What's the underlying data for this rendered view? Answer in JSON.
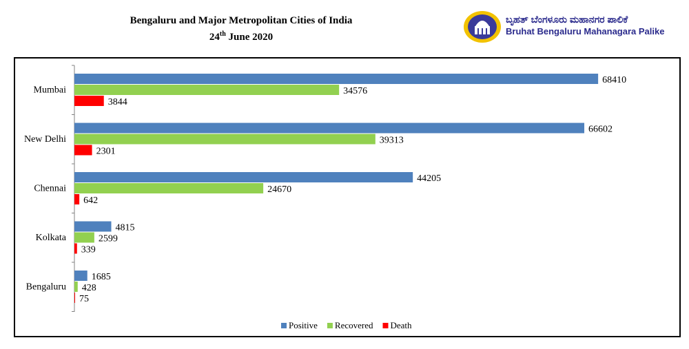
{
  "title": {
    "line1": "Bengaluru and Major Metropolitan Cities of India",
    "date_day": "24",
    "date_suffix": "th",
    "date_rest": " June 2020"
  },
  "logo": {
    "kannada": "ಬೃಹತ್ ಬೆಂಗಳೂರು ಮಹಾನಗರ ಪಾಲಿಕೆ",
    "english": "Bruhat Bengaluru Mahanagara Palike",
    "colors": {
      "ring": "#f2c200",
      "inner": "#3a3a9a",
      "text": "#2a2a8c"
    }
  },
  "chart_data": {
    "type": "bar",
    "orientation": "horizontal",
    "categories": [
      "Mumbai",
      "New Delhi",
      "Chennai",
      "Kolkata",
      "Bengaluru"
    ],
    "series": [
      {
        "name": "Positive",
        "color": "#4f81bd",
        "values": [
          68410,
          66602,
          44205,
          4815,
          1685
        ]
      },
      {
        "name": "Recovered",
        "color": "#92d050",
        "values": [
          34576,
          39313,
          24670,
          2599,
          428
        ]
      },
      {
        "name": "Death",
        "color": "#ff0000",
        "values": [
          3844,
          2301,
          642,
          339,
          75
        ]
      }
    ],
    "xlim": [
      0,
      72000
    ],
    "grid": false,
    "data_labels": true,
    "legend": "bottom"
  }
}
